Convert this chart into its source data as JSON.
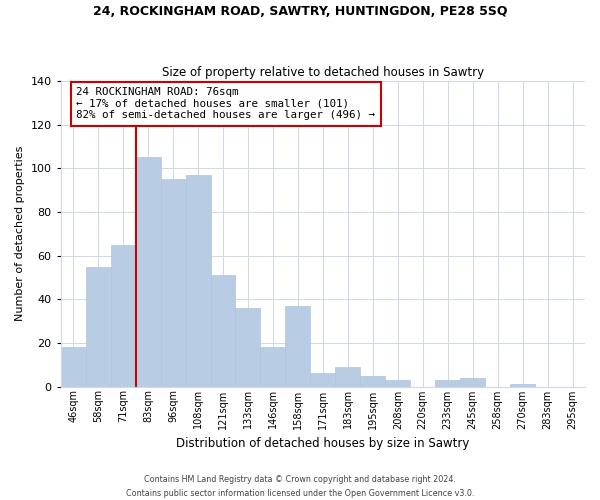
{
  "title": "24, ROCKINGHAM ROAD, SAWTRY, HUNTINGDON, PE28 5SQ",
  "subtitle": "Size of property relative to detached houses in Sawtry",
  "xlabel": "Distribution of detached houses by size in Sawtry",
  "ylabel": "Number of detached properties",
  "bar_color": "#b8cce4",
  "bar_edge_color": "#b0c4de",
  "categories": [
    "46sqm",
    "58sqm",
    "71sqm",
    "83sqm",
    "96sqm",
    "108sqm",
    "121sqm",
    "133sqm",
    "146sqm",
    "158sqm",
    "171sqm",
    "183sqm",
    "195sqm",
    "208sqm",
    "220sqm",
    "233sqm",
    "245sqm",
    "258sqm",
    "270sqm",
    "283sqm",
    "295sqm"
  ],
  "values": [
    18,
    55,
    65,
    105,
    95,
    97,
    51,
    36,
    18,
    37,
    6,
    9,
    5,
    3,
    0,
    3,
    4,
    0,
    1,
    0,
    0
  ],
  "vline_x": 2.5,
  "annotation_title": "24 ROCKINGHAM ROAD: 76sqm",
  "annotation_line1": "← 17% of detached houses are smaller (101)",
  "annotation_line2": "82% of semi-detached houses are larger (496) →",
  "vline_color": "#cc0000",
  "annotation_box_color": "#ffffff",
  "annotation_box_edge": "#cc0000",
  "ylim": [
    0,
    140
  ],
  "yticks": [
    0,
    20,
    40,
    60,
    80,
    100,
    120,
    140
  ],
  "footer1": "Contains HM Land Registry data © Crown copyright and database right 2024.",
  "footer2": "Contains public sector information licensed under the Open Government Licence v3.0.",
  "background_color": "#ffffff",
  "grid_color": "#d0d8e8"
}
